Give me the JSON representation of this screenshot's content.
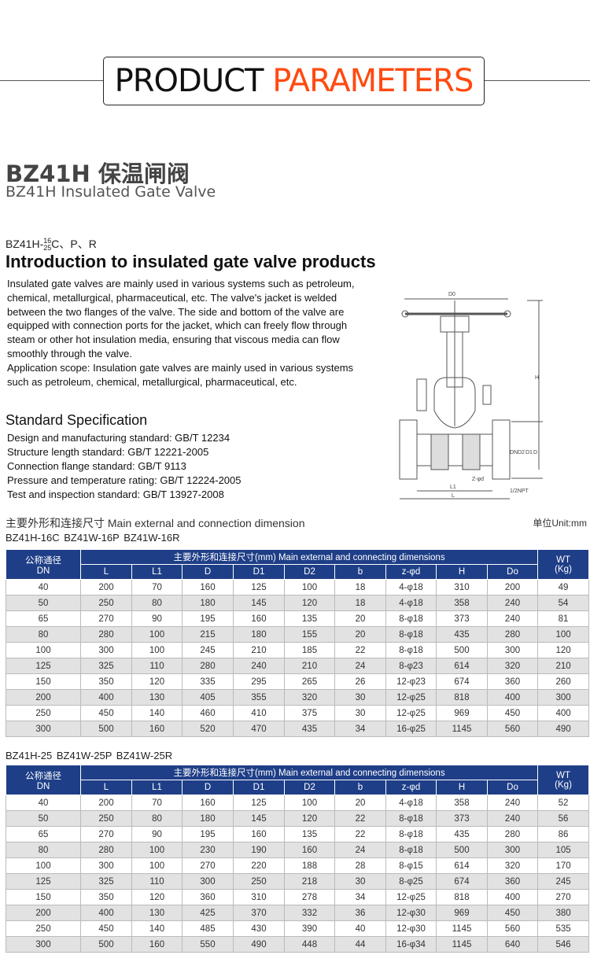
{
  "banner": {
    "word1": "PRODUCT",
    "word2": "PARAMETERS",
    "accent": "#ff4a10"
  },
  "title": {
    "cn": "BZ41H 保温闸阀",
    "en": "BZ41H Insulated Gate Valve"
  },
  "model": {
    "prefix": "BZ41H-",
    "num_top": "16",
    "num_bottom": "25",
    "suffix": "C、P、R"
  },
  "intro": {
    "heading": "Introduction to insulated gate valve products",
    "paragraphs": [
      "Insulated gate valves are mainly used in various systems such as petroleum, chemical, metallurgical, pharmaceutical, etc. The valve's jacket is welded between the two flanges of the valve. The side and bottom of the valve are equipped with connection ports for the jacket, which can freely flow through steam or other hot insulation media, ensuring that viscous media can flow smoothly through the valve.",
      "Application scope: Insulation gate valves are mainly used in various systems such as petroleum, chemical, metallurgical, pharmaceutical, etc."
    ]
  },
  "spec": {
    "heading": "Standard Specification",
    "items": [
      "Design and manufacturing standard: GB/T 12234",
      "Structure length standard: GB/T 12221-2005",
      "Connection flange standard: GB/T 9113",
      "Pressure and temperature rating: GB/T 12224-2005",
      "Test and inspection standard: GB/T 13927-2008"
    ]
  },
  "diagram": {
    "labels": [
      "D0",
      "H",
      "DN",
      "D2",
      "D1",
      "D",
      "L1",
      "L",
      "Z-φd",
      "1/2NPT"
    ]
  },
  "dimensions": {
    "heading": "主要外形和连接尺寸   Main external and connection dimension",
    "unit": "单位Unit:mm"
  },
  "table_header": {
    "dn": "公称通径",
    "dn2": "DN",
    "group": "主要外形和连接尺寸(mm)   Main external and connecting dimensions",
    "cols": [
      "L",
      "L1",
      "D",
      "D1",
      "D2",
      "b",
      "z-φd",
      "H",
      "Do"
    ],
    "wt": "WT",
    "wt2": "(Kg)",
    "header_color": "#1e3e87"
  },
  "tables": [
    {
      "models": "BZ41H-16C   BZ41W-16P   BZ41W-16R",
      "rows": [
        [
          "40",
          "200",
          "70",
          "160",
          "125",
          "100",
          "18",
          "4-φ18",
          "310",
          "200",
          "49"
        ],
        [
          "50",
          "250",
          "80",
          "180",
          "145",
          "120",
          "18",
          "4-φ18",
          "358",
          "240",
          "54"
        ],
        [
          "65",
          "270",
          "90",
          "195",
          "160",
          "135",
          "20",
          "8-φ18",
          "373",
          "240",
          "81"
        ],
        [
          "80",
          "280",
          "100",
          "215",
          "180",
          "155",
          "20",
          "8-φ18",
          "435",
          "280",
          "100"
        ],
        [
          "100",
          "300",
          "100",
          "245",
          "210",
          "185",
          "22",
          "8-φ18",
          "500",
          "300",
          "120"
        ],
        [
          "125",
          "325",
          "110",
          "280",
          "240",
          "210",
          "24",
          "8-φ23",
          "614",
          "320",
          "210"
        ],
        [
          "150",
          "350",
          "120",
          "335",
          "295",
          "265",
          "26",
          "12-φ23",
          "674",
          "360",
          "260"
        ],
        [
          "200",
          "400",
          "130",
          "405",
          "355",
          "320",
          "30",
          "12-φ25",
          "818",
          "400",
          "300"
        ],
        [
          "250",
          "450",
          "140",
          "460",
          "410",
          "375",
          "30",
          "12-φ25",
          "969",
          "450",
          "400"
        ],
        [
          "300",
          "500",
          "160",
          "520",
          "470",
          "435",
          "34",
          "16-φ25",
          "1145",
          "560",
          "490"
        ]
      ]
    },
    {
      "models": "BZ41H-25   BZ41W-25P   BZ41W-25R",
      "rows": [
        [
          "40",
          "200",
          "70",
          "160",
          "125",
          "100",
          "20",
          "4-φ18",
          "358",
          "240",
          "52"
        ],
        [
          "50",
          "250",
          "80",
          "180",
          "145",
          "120",
          "22",
          "8-φ18",
          "373",
          "240",
          "56"
        ],
        [
          "65",
          "270",
          "90",
          "195",
          "160",
          "135",
          "22",
          "8-φ18",
          "435",
          "280",
          "86"
        ],
        [
          "80",
          "280",
          "100",
          "230",
          "190",
          "160",
          "24",
          "8-φ18",
          "500",
          "300",
          "105"
        ],
        [
          "100",
          "300",
          "100",
          "270",
          "220",
          "188",
          "28",
          "8-φ15",
          "614",
          "320",
          "170"
        ],
        [
          "125",
          "325",
          "110",
          "300",
          "250",
          "218",
          "30",
          "8-φ25",
          "674",
          "360",
          "245"
        ],
        [
          "150",
          "350",
          "120",
          "360",
          "310",
          "278",
          "34",
          "12-φ25",
          "818",
          "400",
          "270"
        ],
        [
          "200",
          "400",
          "130",
          "425",
          "370",
          "332",
          "36",
          "12-φ30",
          "969",
          "450",
          "380"
        ],
        [
          "250",
          "450",
          "140",
          "485",
          "430",
          "390",
          "40",
          "12-φ30",
          "1145",
          "560",
          "535"
        ],
        [
          "300",
          "500",
          "160",
          "550",
          "490",
          "448",
          "44",
          "16-φ34",
          "1145",
          "640",
          "546"
        ]
      ]
    }
  ]
}
